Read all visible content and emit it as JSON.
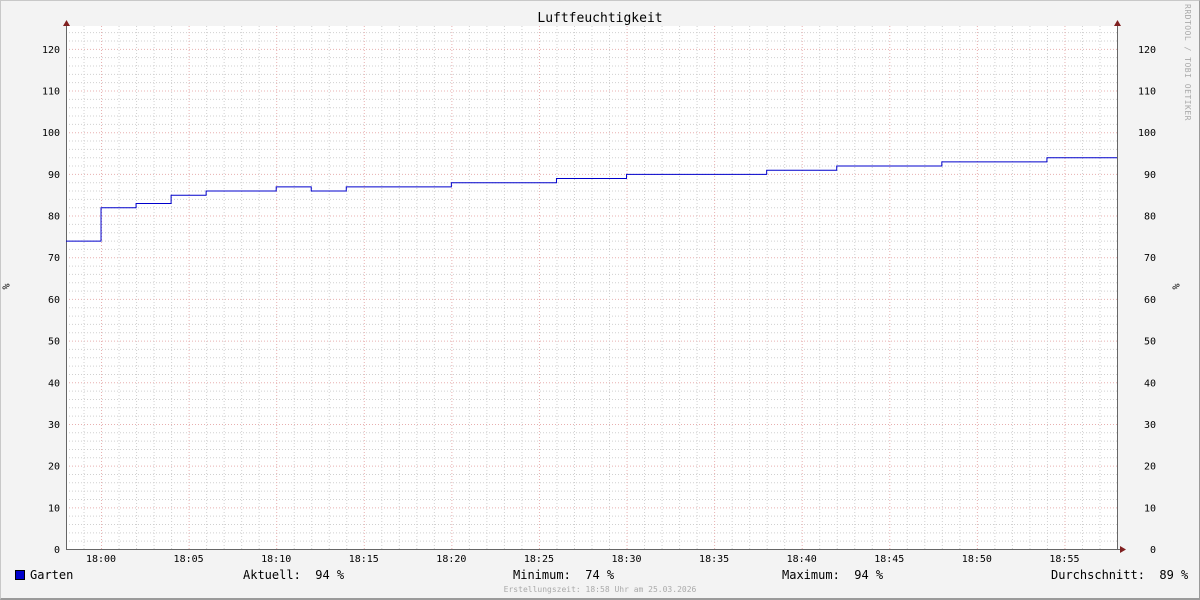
{
  "chart_data": {
    "type": "line",
    "step": true,
    "title": "Luftfeuchtigkeit",
    "ylabel": "%",
    "ylim": [
      0,
      125
    ],
    "yticks": [
      0,
      10,
      20,
      30,
      40,
      50,
      60,
      70,
      80,
      90,
      100,
      110,
      120
    ],
    "xlim": [
      "17:58",
      "18:58"
    ],
    "xticks": [
      "18:00",
      "18:05",
      "18:10",
      "18:15",
      "18:20",
      "18:25",
      "18:30",
      "18:35",
      "18:40",
      "18:45",
      "18:50",
      "18:55"
    ],
    "grid": true,
    "series": [
      {
        "name": "Garten",
        "color": "#0000cc",
        "x": [
          "17:58",
          "18:00",
          "18:02",
          "18:04",
          "18:06",
          "18:10",
          "18:12",
          "18:14",
          "18:20",
          "18:26",
          "18:30",
          "18:38",
          "18:42",
          "18:48",
          "18:54",
          "18:58"
        ],
        "values": [
          74,
          82,
          83,
          85,
          86,
          87,
          86,
          87,
          88,
          89,
          90,
          91,
          92,
          93,
          94,
          94
        ]
      }
    ]
  },
  "legend": {
    "series_name": "Garten",
    "current": "Aktuell:  94 %",
    "minimum": "Minimum:  74 %",
    "maximum": "Maximum:  94 %",
    "average": "Durchschnitt:  89 %"
  },
  "watermark": "RRDTOOL / TOBI OETIKER",
  "footer": "Erstellungszeit: 18:58 Uhr am 25.03.2026"
}
